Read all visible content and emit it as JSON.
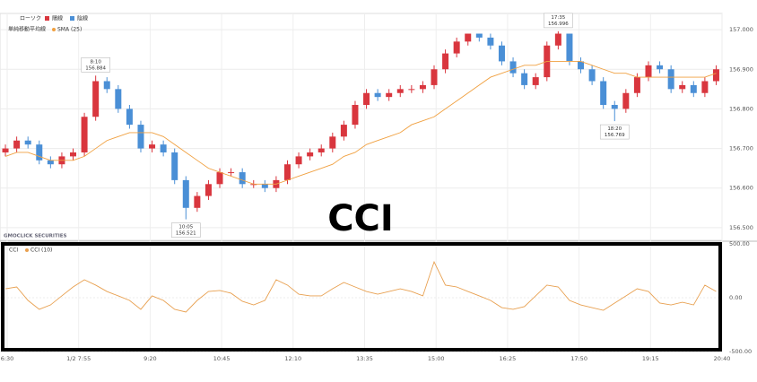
{
  "chart_data": [
    {
      "type": "candlestick",
      "legend_title": "ローソク",
      "up": {
        "name": "陽線",
        "color": "#d9363e"
      },
      "down": {
        "name": "陰線",
        "color": "#4a8fd6"
      },
      "overlay_group": "単純移動平均線",
      "overlays": [
        {
          "name": "SMA (25)",
          "color": "#f0a040",
          "values": [
            156.68,
            156.69,
            156.69,
            156.68,
            156.67,
            156.67,
            156.67,
            156.68,
            156.7,
            156.72,
            156.73,
            156.74,
            156.74,
            156.74,
            156.73,
            156.71,
            156.69,
            156.67,
            156.65,
            156.64,
            156.63,
            156.62,
            156.61,
            156.61,
            156.61,
            156.62,
            156.63,
            156.64,
            156.65,
            156.66,
            156.68,
            156.69,
            156.71,
            156.72,
            156.73,
            156.74,
            156.76,
            156.77,
            156.78,
            156.8,
            156.82,
            156.84,
            156.86,
            156.88,
            156.89,
            156.9,
            156.91,
            156.91,
            156.92,
            156.92,
            156.92,
            156.92,
            156.91,
            156.9,
            156.89,
            156.89,
            156.88,
            156.88,
            156.88,
            156.88,
            156.88,
            156.88,
            156.88,
            156.89
          ]
        }
      ],
      "open": [
        156.69,
        156.7,
        156.72,
        156.71,
        156.67,
        156.66,
        156.68,
        156.69,
        156.78,
        156.87,
        156.85,
        156.8,
        156.76,
        156.7,
        156.71,
        156.69,
        156.62,
        156.55,
        156.58,
        156.61,
        156.64,
        156.64,
        156.61,
        156.61,
        156.6,
        156.62,
        156.66,
        156.68,
        156.69,
        156.7,
        156.73,
        156.76,
        156.81,
        156.84,
        156.83,
        156.84,
        156.85,
        156.85,
        156.86,
        156.9,
        156.94,
        156.97,
        156.99,
        156.98,
        156.96,
        156.92,
        156.89,
        156.86,
        156.88,
        156.96,
        156.99,
        156.92,
        156.9,
        156.87,
        156.81,
        156.8,
        156.84,
        156.88,
        156.91,
        156.9,
        156.85,
        156.86,
        156.84,
        156.87
      ],
      "high": [
        156.71,
        156.73,
        156.73,
        156.72,
        156.68,
        156.69,
        156.7,
        156.79,
        156.884,
        156.88,
        156.86,
        156.81,
        156.77,
        156.72,
        156.72,
        156.7,
        156.63,
        156.59,
        156.62,
        156.65,
        156.65,
        156.65,
        156.62,
        156.62,
        156.63,
        156.67,
        156.69,
        156.7,
        156.71,
        156.74,
        156.77,
        156.82,
        156.85,
        156.85,
        156.85,
        156.86,
        156.86,
        156.87,
        156.91,
        156.95,
        156.98,
        156.99,
        156.99,
        156.99,
        156.97,
        156.93,
        156.9,
        156.89,
        156.97,
        156.996,
        156.99,
        156.93,
        156.91,
        156.88,
        156.82,
        156.85,
        156.89,
        156.92,
        156.92,
        156.91,
        156.87,
        156.87,
        156.88,
        156.91
      ],
      "low": [
        156.68,
        156.69,
        156.7,
        156.66,
        156.65,
        156.65,
        156.67,
        156.68,
        156.77,
        156.84,
        156.79,
        156.75,
        156.69,
        156.69,
        156.68,
        156.61,
        156.521,
        156.54,
        156.57,
        156.6,
        156.63,
        156.6,
        156.6,
        156.59,
        156.59,
        156.61,
        156.65,
        156.67,
        156.68,
        156.69,
        156.72,
        156.75,
        156.8,
        156.82,
        156.82,
        156.83,
        156.84,
        156.84,
        156.85,
        156.89,
        156.93,
        156.96,
        156.97,
        156.95,
        156.91,
        156.88,
        156.85,
        156.85,
        156.87,
        156.95,
        156.91,
        156.89,
        156.86,
        156.8,
        156.769,
        156.79,
        156.83,
        156.87,
        156.89,
        156.84,
        156.84,
        156.83,
        156.83,
        156.86
      ],
      "close": [
        156.7,
        156.72,
        156.71,
        156.67,
        156.66,
        156.68,
        156.69,
        156.78,
        156.87,
        156.85,
        156.8,
        156.76,
        156.7,
        156.71,
        156.69,
        156.62,
        156.55,
        156.58,
        156.61,
        156.64,
        156.64,
        156.61,
        156.61,
        156.6,
        156.62,
        156.66,
        156.68,
        156.69,
        156.7,
        156.73,
        156.76,
        156.81,
        156.84,
        156.83,
        156.84,
        156.85,
        156.85,
        156.86,
        156.9,
        156.94,
        156.97,
        156.99,
        156.98,
        156.96,
        156.92,
        156.89,
        156.86,
        156.88,
        156.96,
        156.99,
        156.92,
        156.9,
        156.87,
        156.81,
        156.8,
        156.84,
        156.88,
        156.91,
        156.9,
        156.85,
        156.86,
        156.84,
        156.87,
        156.9
      ],
      "annotations": [
        {
          "time": "8:10",
          "price": 156.884
        },
        {
          "time": "10:05",
          "price": 156.521
        },
        {
          "time": "17:35",
          "price": 156.996
        },
        {
          "time": "18:20",
          "price": 156.769
        }
      ],
      "ylim": [
        156.468,
        157.041
      ],
      "yticks": [
        {
          "value": 156.5,
          "label": "156.500"
        },
        {
          "value": 156.6,
          "label": "156.600"
        },
        {
          "value": 156.7,
          "label": "156.700"
        },
        {
          "value": 156.8,
          "label": "156.800"
        },
        {
          "value": 156.9,
          "label": "156.900"
        },
        {
          "value": 157.0,
          "label": "157.000"
        }
      ],
      "grid": true,
      "watermark": "GMOCLICK SECURITIES"
    },
    {
      "type": "line",
      "legend_title": "CCI",
      "series": [
        {
          "name": "CCI (10)",
          "color": "#e8a050",
          "values": [
            83,
            100,
            -25,
            -108,
            -67,
            17,
            100,
            167,
            117,
            58,
            17,
            -25,
            -108,
            17,
            -25,
            -108,
            -133,
            -25,
            58,
            67,
            42,
            -33,
            -67,
            -25,
            167,
            117,
            33,
            17,
            17,
            83,
            142,
            100,
            58,
            33,
            58,
            83,
            58,
            17,
            333,
            117,
            100,
            58,
            17,
            -25,
            -92,
            -108,
            -83,
            17,
            117,
            100,
            -25,
            -67,
            -92,
            -117,
            -50,
            17,
            83,
            58,
            -50,
            -67,
            -42,
            -67,
            117,
            58
          ]
        }
      ],
      "ylim": [
        -500,
        500
      ],
      "yticks": [
        {
          "value": -500,
          "label": "-500.00"
        },
        {
          "value": 0,
          "label": "0.00"
        },
        {
          "value": 500,
          "label": "500.00"
        }
      ],
      "xtick_labels": [
        "6:30",
        "1/2 7:55",
        "9:20",
        "10:45",
        "12:10",
        "13:35",
        "15:00",
        "16:25",
        "17:50",
        "19:15",
        "20:40"
      ],
      "highlight_label": "CCI"
    }
  ]
}
